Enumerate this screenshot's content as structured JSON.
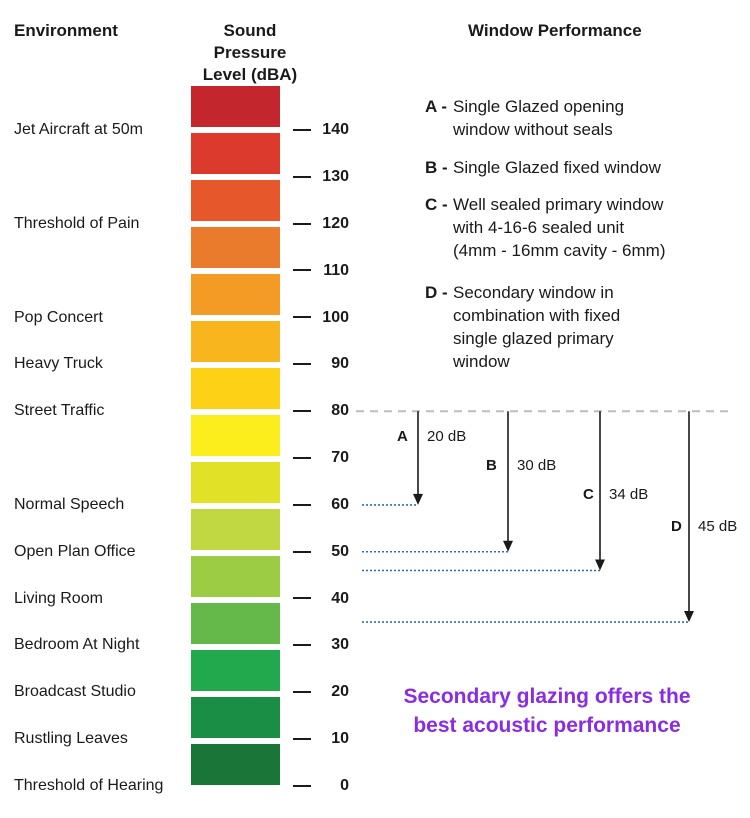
{
  "headers": {
    "environment": "Environment",
    "spl": "Sound Pressure\nLevel (dBA)",
    "window_performance": "Window Performance"
  },
  "environments": [
    {
      "label": "Jet Aircraft at 50m",
      "db": 140
    },
    {
      "label": "Threshold of Pain",
      "db": 120
    },
    {
      "label": "Pop Concert",
      "db": 100
    },
    {
      "label": "Heavy Truck",
      "db": 90
    },
    {
      "label": "Street Traffic",
      "db": 80
    },
    {
      "label": "Normal Speech",
      "db": 60
    },
    {
      "label": "Open Plan Office",
      "db": 50
    },
    {
      "label": "Living Room",
      "db": 40
    },
    {
      "label": "Bedroom At Night",
      "db": 30
    },
    {
      "label": "Broadcast Studio",
      "db": 20
    },
    {
      "label": "Rustling Leaves",
      "db": 10
    },
    {
      "label": "Threshold of Hearing",
      "db": 0
    }
  ],
  "scale_ticks": [
    "140",
    "130",
    "120",
    "110",
    "100",
    "90",
    "80",
    "70",
    "60",
    "50",
    "40",
    "30",
    "20",
    "10",
    "0"
  ],
  "scale_colors": [
    "#c4262e",
    "#dc3a2c",
    "#e6582b",
    "#ea7a2c",
    "#f39b24",
    "#f9b51d",
    "#fcd116",
    "#fcee1d",
    "#e1e227",
    "#c2d843",
    "#9ccb44",
    "#64b94a",
    "#22a84d",
    "#1b8e45",
    "#1a7538"
  ],
  "legend": [
    {
      "key": "A -",
      "text": "Single Glazed opening\nwindow without seals"
    },
    {
      "key": "B -",
      "text": "Single Glazed fixed window"
    },
    {
      "key": "C -",
      "text": "Well sealed primary window\nwith 4-16-6 sealed unit\n(4mm - 16mm cavity - 6mm)"
    },
    {
      "key": "D -",
      "text": "Secondary window in\ncombination with fixed\nsingle glazed primary\nwindow"
    }
  ],
  "reduction": {
    "from_db": 80,
    "windows": [
      {
        "letter": "A",
        "reduction_label": "20 dB",
        "reduction": 20
      },
      {
        "letter": "B",
        "reduction_label": "30 dB",
        "reduction": 30
      },
      {
        "letter": "C",
        "reduction_label": "34 dB",
        "reduction": 34
      },
      {
        "letter": "D",
        "reduction_label": "45 dB",
        "reduction": 45
      }
    ]
  },
  "conclusion": "Secondary glazing offers the\nbest acoustic performance",
  "colors": {
    "arrow": "#1a1a1a",
    "baseline_dash": "#bdbdbd",
    "level_dotted": "#2f6db5",
    "conclusion": "#8b2be2"
  }
}
